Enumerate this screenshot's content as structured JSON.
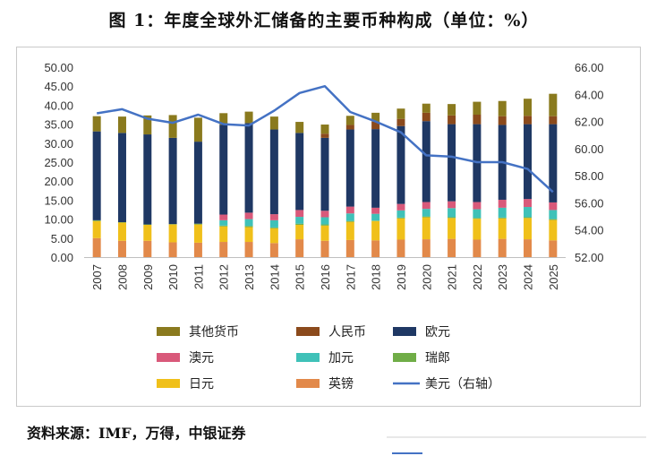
{
  "title": "图 1：年度全球外汇储备的主要币种构成（单位：%）",
  "source": "资料来源：IMF，万得，中银证券",
  "chart_data": {
    "type": "bar",
    "stacked": true,
    "categories": [
      "2007",
      "2008",
      "2009",
      "2010",
      "2011",
      "2012",
      "2013",
      "2014",
      "2015",
      "2016",
      "2017",
      "2018",
      "2019",
      "2020",
      "2021",
      "2022",
      "2023",
      "2024",
      "2025"
    ],
    "left_axis": {
      "ticks": [
        "0.00",
        "5.00",
        "10.00",
        "15.00",
        "20.00",
        "25.00",
        "30.00",
        "35.00",
        "40.00",
        "45.00",
        "50.00"
      ],
      "ylim": [
        0,
        50
      ]
    },
    "right_axis": {
      "ticks": [
        "52.00",
        "54.00",
        "56.00",
        "58.00",
        "60.00",
        "62.00",
        "64.00",
        "66.00"
      ],
      "ylim": [
        52,
        66
      ]
    },
    "series": [
      {
        "name": "英镑",
        "color": "#e2894a",
        "values": [
          5.0,
          4.3,
          4.3,
          3.9,
          3.8,
          4.0,
          4.0,
          3.7,
          4.7,
          4.3,
          4.5,
          4.4,
          4.6,
          4.7,
          4.8,
          4.6,
          4.8,
          4.7,
          4.4
        ]
      },
      {
        "name": "日元",
        "color": "#f0c01a",
        "values": [
          4.5,
          4.8,
          4.2,
          4.7,
          4.8,
          4.1,
          3.9,
          3.9,
          3.8,
          4.0,
          4.8,
          5.1,
          5.6,
          5.8,
          5.5,
          5.5,
          5.4,
          5.6,
          5.4
        ]
      },
      {
        "name": "瑞郎",
        "color": "#70ad47",
        "values": [
          0.2,
          0.1,
          0.1,
          0.1,
          0.2,
          0.2,
          0.3,
          0.2,
          0.3,
          0.3,
          0.2,
          0.1,
          0.2,
          0.2,
          0.2,
          0.2,
          0.2,
          0.2,
          0.2
        ]
      },
      {
        "name": "加元",
        "color": "#3fc1b8",
        "values": [
          0,
          0,
          0,
          0,
          0,
          1.4,
          1.8,
          1.9,
          1.8,
          1.9,
          2.0,
          1.8,
          1.9,
          2.0,
          2.4,
          2.3,
          2.6,
          2.7,
          2.4
        ]
      },
      {
        "name": "澳元",
        "color": "#d9597a",
        "values": [
          0,
          0,
          0,
          0,
          0,
          1.5,
          1.7,
          1.6,
          1.8,
          1.7,
          1.8,
          1.6,
          1.7,
          1.8,
          1.8,
          1.9,
          2.1,
          2.1,
          2.0
        ]
      },
      {
        "name": "欧元",
        "color": "#1f3864",
        "values": [
          23.4,
          23.5,
          23.7,
          22.7,
          21.6,
          23.6,
          23.6,
          22.3,
          20.3,
          19.2,
          20.3,
          20.7,
          20.5,
          21.3,
          20.3,
          20.5,
          19.7,
          19.7,
          20.6
        ]
      },
      {
        "name": "人民币",
        "color": "#8b4a1c",
        "values": [
          0,
          0,
          0,
          0,
          0,
          0,
          0,
          0,
          0,
          1.1,
          1.2,
          2.0,
          1.9,
          2.2,
          2.3,
          2.5,
          2.3,
          2.2,
          2.1
        ]
      },
      {
        "name": "其他货币",
        "color": "#8a7a1e",
        "values": [
          4.0,
          4.3,
          5.0,
          6.0,
          6.3,
          3.1,
          3.0,
          3.4,
          2.9,
          2.4,
          2.4,
          2.3,
          2.7,
          2.4,
          3.0,
          3.4,
          4.0,
          4.5,
          5.9
        ]
      }
    ],
    "line": {
      "name": "美元（右轴）",
      "color": "#4472c4",
      "axis": "right",
      "values": [
        62.6,
        62.9,
        62.2,
        61.9,
        62.5,
        61.8,
        61.7,
        62.8,
        64.1,
        64.6,
        62.7,
        62.0,
        61.2,
        59.5,
        59.4,
        59.0,
        59.0,
        58.5,
        56.8
      ]
    },
    "legend_order": [
      "其他货币",
      "人民币",
      "欧元",
      "澳元",
      "加元",
      "瑞郎",
      "日元",
      "英镑",
      "美元（右轴）"
    ],
    "legend_position": "bottom",
    "grid": false
  }
}
